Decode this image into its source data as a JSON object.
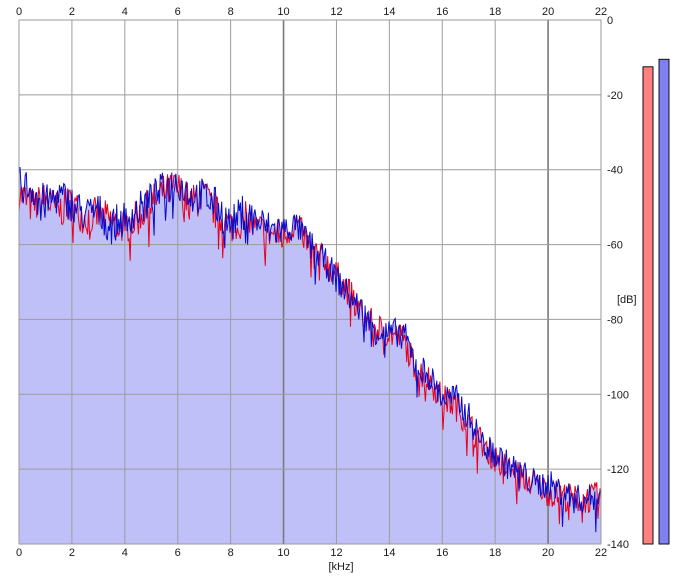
{
  "chart_data": {
    "type": "line",
    "xlabel": "[kHz]",
    "ylabel": "[dB]",
    "xlim": [
      0,
      22
    ],
    "ylim": [
      -140,
      0
    ],
    "xticks": [
      "0",
      "2",
      "4",
      "6",
      "8",
      "10",
      "12",
      "14",
      "16",
      "18",
      "20",
      "22"
    ],
    "yticks": [
      "0",
      "-20",
      "-40",
      "-60",
      "-80",
      "-100",
      "-120",
      "-140"
    ],
    "grid": true,
    "fill_below_envelope": true,
    "colors": {
      "left": "#e8001c",
      "right": "#0a0ac8",
      "fill": "#c0c0f8",
      "meter_left": "#ff8080",
      "meter_right": "#8080f0"
    },
    "series": [
      {
        "key": "left",
        "x": [
          0,
          0.5,
          1,
          1.5,
          2,
          2.5,
          3,
          3.5,
          4,
          4.5,
          5,
          5.5,
          6,
          6.5,
          7,
          7.5,
          8,
          8.5,
          9,
          9.5,
          10,
          10.5,
          11,
          11.5,
          12,
          12.5,
          13,
          13.5,
          14,
          14.5,
          15,
          15.5,
          16,
          16.5,
          17,
          17.5,
          18,
          18.5,
          19,
          19.5,
          20,
          20.5,
          21,
          21.5,
          22
        ],
        "values": [
          -46,
          -50,
          -48,
          -51,
          -49,
          -53,
          -52,
          -54,
          -55,
          -53,
          -49,
          -46,
          -45,
          -49,
          -47,
          -52,
          -55,
          -53,
          -56,
          -57,
          -58,
          -54,
          -61,
          -64,
          -68,
          -73,
          -79,
          -82,
          -84,
          -85,
          -93,
          -96,
          -101,
          -103,
          -108,
          -113,
          -117,
          -120,
          -122,
          -124,
          -126,
          -127,
          -128,
          -128,
          -127
        ]
      },
      {
        "key": "right",
        "x": [
          0,
          0.5,
          1,
          1.5,
          2,
          2.5,
          3,
          3.5,
          4,
          4.5,
          5,
          5.5,
          6,
          6.5,
          7,
          7.5,
          8,
          8.5,
          9,
          9.5,
          10,
          10.5,
          11,
          11.5,
          12,
          12.5,
          13,
          13.5,
          14,
          14.5,
          15,
          15.5,
          16,
          16.5,
          17,
          17.5,
          18,
          18.5,
          19,
          19.5,
          20,
          20.5,
          21,
          21.5,
          22
        ],
        "values": [
          -44,
          -45,
          -49,
          -47,
          -49,
          -52,
          -51,
          -55,
          -53,
          -51,
          -48,
          -45,
          -43,
          -47,
          -47,
          -50,
          -55,
          -51,
          -54,
          -56,
          -56,
          -55,
          -60,
          -64,
          -69,
          -74,
          -78,
          -83,
          -84,
          -83,
          -92,
          -95,
          -101,
          -101,
          -106,
          -113,
          -116,
          -119,
          -121,
          -124,
          -124,
          -126,
          -128,
          -128,
          -127
        ]
      }
    ],
    "level_meters": [
      {
        "key": "left",
        "value_db": -12.5
      },
      {
        "key": "right",
        "value_db": -10.5
      }
    ]
  }
}
